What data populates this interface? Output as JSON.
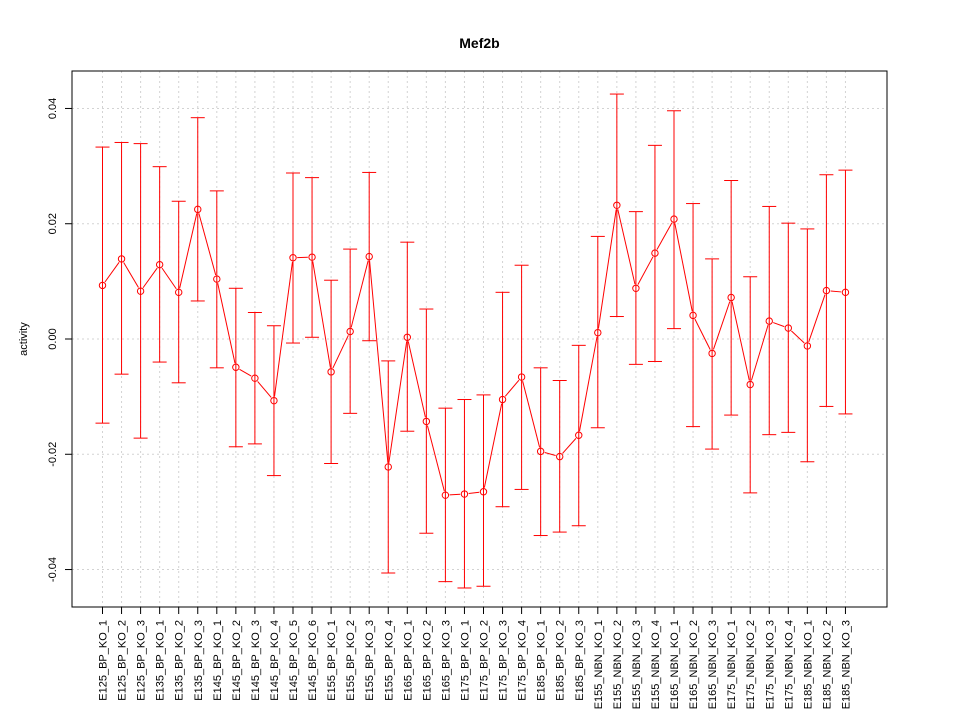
{
  "chart_data": {
    "type": "line",
    "title": "Mef2b",
    "xlabel": "",
    "ylabel": "activity",
    "ylim": [
      -0.0465,
      0.0465
    ],
    "yticks": [
      -0.04,
      -0.02,
      0.0,
      0.02,
      0.04
    ],
    "ytick_labels": [
      "-0.04",
      "-0.02",
      "0.00",
      "0.02",
      "0.04"
    ],
    "grid": true,
    "series_color": "#ff0000",
    "grid_color": "#d3d3d3",
    "categories": [
      "E125_BP_KO_1",
      "E125_BP_KO_2",
      "E125_BP_KO_3",
      "E135_BP_KO_1",
      "E135_BP_KO_2",
      "E135_BP_KO_3",
      "E145_BP_KO_1",
      "E145_BP_KO_2",
      "E145_BP_KO_3",
      "E145_BP_KO_4",
      "E145_BP_KO_5",
      "E145_BP_KO_6",
      "E155_BP_KO_1",
      "E155_BP_KO_2",
      "E155_BP_KO_3",
      "E155_BP_KO_4",
      "E165_BP_KO_1",
      "E165_BP_KO_2",
      "E165_BP_KO_3",
      "E175_BP_KO_1",
      "E175_BP_KO_2",
      "E175_BP_KO_3",
      "E175_BP_KO_4",
      "E185_BP_KO_1",
      "E185_BP_KO_2",
      "E185_BP_KO_3",
      "E155_NBN_KO_1",
      "E155_NBN_KO_2",
      "E155_NBN_KO_3",
      "E155_NBN_KO_4",
      "E165_NBN_KO_1",
      "E165_NBN_KO_2",
      "E165_NBN_KO_3",
      "E175_NBN_KO_1",
      "E175_NBN_KO_2",
      "E175_NBN_KO_3",
      "E175_NBN_KO_4",
      "E185_NBN_KO_1",
      "E185_NBN_KO_2",
      "E185_NBN_KO_3"
    ],
    "values": [
      0.0093,
      0.0139,
      0.0083,
      0.0129,
      0.0081,
      0.0225,
      0.0104,
      -0.0049,
      -0.0068,
      -0.0107,
      0.0141,
      0.0142,
      -0.0057,
      0.0013,
      0.0143,
      -0.0222,
      0.0003,
      -0.0143,
      -0.0271,
      -0.0269,
      -0.0265,
      -0.0105,
      -0.0066,
      -0.0195,
      -0.0204,
      -0.0167,
      0.0011,
      0.0232,
      0.0088,
      0.0149,
      0.0208,
      0.0041,
      -0.0025,
      0.0072,
      -0.0079,
      0.0031,
      0.0019,
      -0.0012,
      0.0084,
      0.0081
    ],
    "upper": [
      0.0333,
      0.0341,
      0.0339,
      0.0299,
      0.0239,
      0.0384,
      0.0257,
      0.0088,
      0.0046,
      0.0023,
      0.0288,
      0.028,
      0.0102,
      0.0156,
      0.0289,
      -0.0038,
      0.0168,
      0.0052,
      -0.012,
      -0.0105,
      -0.0097,
      0.0081,
      0.0128,
      -0.005,
      -0.0072,
      -0.0011,
      0.0178,
      0.0425,
      0.0221,
      0.0336,
      0.0396,
      0.0235,
      0.0139,
      0.0275,
      0.0108,
      0.023,
      0.0201,
      0.0191,
      0.0285,
      0.0293
    ],
    "lower": [
      -0.0146,
      -0.0061,
      -0.0172,
      -0.004,
      -0.0076,
      0.0066,
      -0.005,
      -0.0187,
      -0.0182,
      -0.0237,
      -0.0007,
      0.0003,
      -0.0216,
      -0.0129,
      -0.0003,
      -0.0406,
      -0.016,
      -0.0337,
      -0.0421,
      -0.0432,
      -0.0429,
      -0.0291,
      -0.0261,
      -0.0341,
      -0.0335,
      -0.0324,
      -0.0154,
      0.0039,
      -0.0044,
      -0.0039,
      0.0018,
      -0.0152,
      -0.0191,
      -0.0132,
      -0.0267,
      -0.0166,
      -0.0162,
      -0.0213,
      -0.0117,
      -0.013
    ]
  }
}
